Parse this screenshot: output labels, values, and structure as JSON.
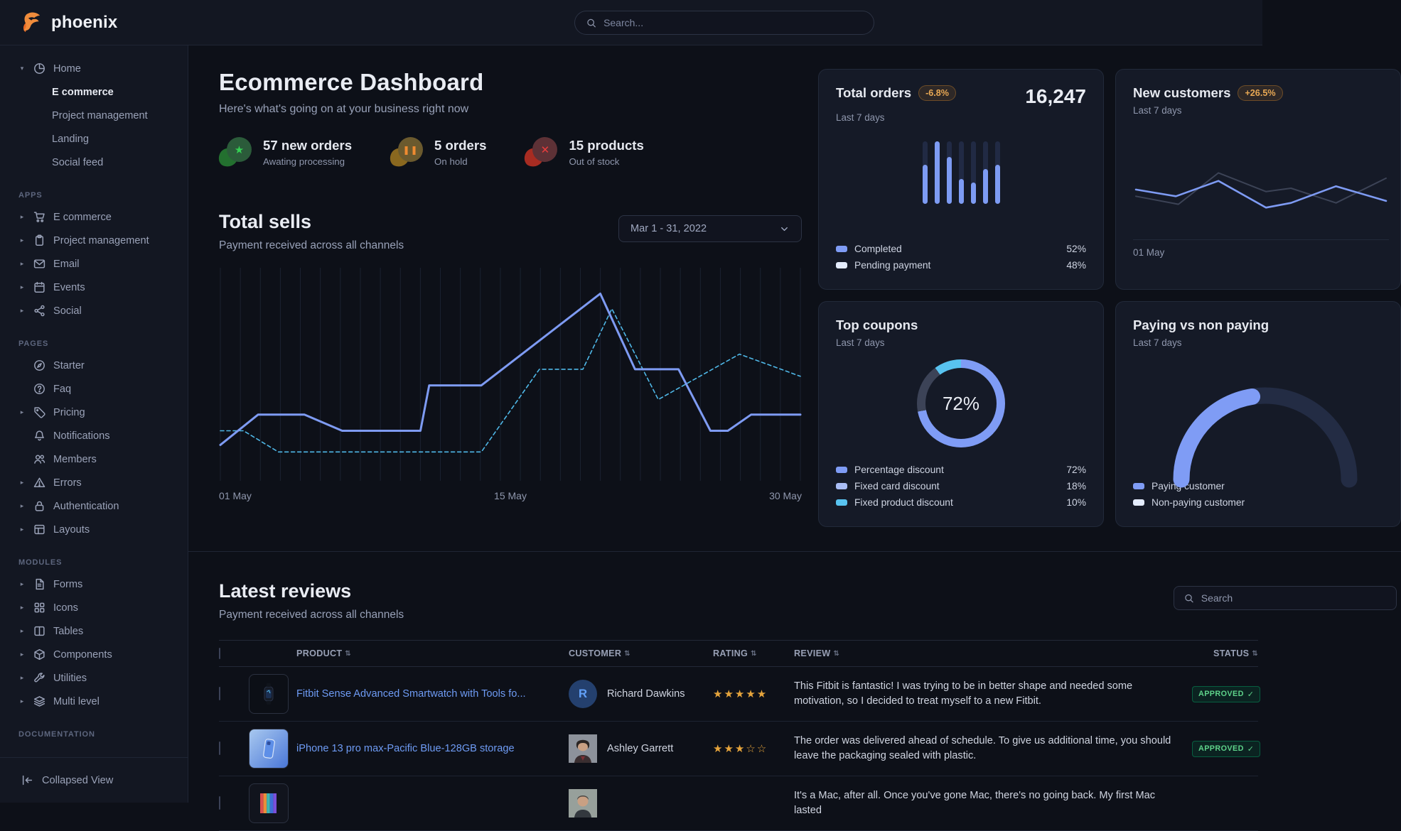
{
  "navbar": {
    "brand": "phoenix",
    "search_placeholder": "Search...",
    "search_icon": "search",
    "logo_icon": "phoenix-bird"
  },
  "sidebar": {
    "sections": [
      {
        "items": [
          {
            "label": "Home",
            "icon": "pie-chart",
            "expanded": true,
            "children": [
              {
                "label": "E commerce",
                "active": true
              },
              {
                "label": "Project management",
                "active": false
              },
              {
                "label": "Landing",
                "active": false
              },
              {
                "label": "Social feed",
                "active": false
              }
            ]
          }
        ]
      },
      {
        "label": "APPS",
        "items": [
          {
            "label": "E commerce",
            "icon": "cart",
            "caret": true
          },
          {
            "label": "Project management",
            "icon": "clipboard",
            "caret": true
          },
          {
            "label": "Email",
            "icon": "envelope",
            "caret": true
          },
          {
            "label": "Events",
            "icon": "calendar",
            "caret": true
          },
          {
            "label": "Social",
            "icon": "share",
            "caret": true
          }
        ]
      },
      {
        "label": "PAGES",
        "items": [
          {
            "label": "Starter",
            "icon": "compass",
            "caret": false
          },
          {
            "label": "Faq",
            "icon": "question-circle",
            "caret": false
          },
          {
            "label": "Pricing",
            "icon": "tag",
            "caret": true
          },
          {
            "label": "Notifications",
            "icon": "bell",
            "caret": false
          },
          {
            "label": "Members",
            "icon": "users",
            "caret": false
          },
          {
            "label": "Errors",
            "icon": "warning",
            "caret": true
          },
          {
            "label": "Authentication",
            "icon": "lock",
            "caret": true
          },
          {
            "label": "Layouts",
            "icon": "layout",
            "caret": true
          }
        ]
      },
      {
        "label": "MODULES",
        "items": [
          {
            "label": "Forms",
            "icon": "file-text",
            "caret": true
          },
          {
            "label": "Icons",
            "icon": "grid",
            "caret": true
          },
          {
            "label": "Tables",
            "icon": "columns",
            "caret": true
          },
          {
            "label": "Components",
            "icon": "package",
            "caret": true
          },
          {
            "label": "Utilities",
            "icon": "wrench",
            "caret": true
          },
          {
            "label": "Multi level",
            "icon": "layers",
            "caret": true
          }
        ]
      },
      {
        "label": "DOCUMENTATION",
        "items": []
      }
    ],
    "footer": {
      "label": "Collapsed View",
      "icon": "collapse"
    }
  },
  "page": {
    "title": "Ecommerce Dashboard",
    "subtitle": "Here's what's going on at your business right now"
  },
  "stats": [
    {
      "title": "57 new orders",
      "subtitle": "Awating processing",
      "icon": "star",
      "accent": "#35d154"
    },
    {
      "title": "5 orders",
      "subtitle": "On hold",
      "icon": "pause",
      "accent": "#ef8b31"
    },
    {
      "title": "15 products",
      "subtitle": "Out of stock",
      "icon": "x",
      "accent": "#ea3d3d"
    }
  ],
  "total_sells": {
    "title": "Total sells",
    "subtitle": "Payment received across all channels",
    "date_range": "Mar 1 - 31, 2022",
    "chevron_icon": "chevron-down",
    "chart_data": {
      "type": "line",
      "x_ticks": [
        "01 May",
        "15 May",
        "30 May"
      ],
      "gridlines": 30,
      "series": [
        {
          "name": "current",
          "color": "#7e9bf3",
          "style": "solid",
          "points": [
            [
              0,
              0.85
            ],
            [
              0.065,
              0.7
            ],
            [
              0.145,
              0.7
            ],
            [
              0.21,
              0.78
            ],
            [
              0.345,
              0.78
            ],
            [
              0.36,
              0.555
            ],
            [
              0.45,
              0.555
            ],
            [
              0.655,
              0.1
            ],
            [
              0.715,
              0.475
            ],
            [
              0.79,
              0.475
            ],
            [
              0.845,
              0.78
            ],
            [
              0.875,
              0.78
            ],
            [
              0.915,
              0.7
            ],
            [
              1,
              0.7
            ]
          ]
        },
        {
          "name": "previous",
          "color": "#4fb8e8",
          "style": "dashed",
          "points": [
            [
              0,
              0.78
            ],
            [
              0.04,
              0.78
            ],
            [
              0.1,
              0.885
            ],
            [
              0.45,
              0.885
            ],
            [
              0.55,
              0.475
            ],
            [
              0.625,
              0.475
            ],
            [
              0.675,
              0.175
            ],
            [
              0.755,
              0.625
            ],
            [
              0.895,
              0.4
            ],
            [
              1,
              0.51
            ]
          ]
        }
      ]
    }
  },
  "cards": {
    "total_orders": {
      "title": "Total orders",
      "badge": "-6.8%",
      "period": "Last 7 days",
      "value": "16,247",
      "chart_data": {
        "type": "bar",
        "values_pct": [
          62,
          100,
          75,
          40,
          34,
          56,
          62
        ],
        "bar_color": "#7d9bf3",
        "track_color": "#212a44"
      },
      "legend": [
        {
          "label": "Completed",
          "value": "52%",
          "color": "#7f9cf5"
        },
        {
          "label": "Pending payment",
          "value": "48%",
          "color": "#e4ecfd"
        }
      ]
    },
    "new_customers": {
      "title": "New customers",
      "badge": "+26.5%",
      "period": "Last 7 days",
      "x_tick": "01 May",
      "chart_data": {
        "type": "line",
        "series": [
          {
            "name": "previous",
            "color": "#3c4356",
            "points": [
              [
                0,
                0.45
              ],
              [
                0.17,
                0.57
              ],
              [
                0.33,
                0.1
              ],
              [
                0.52,
                0.38
              ],
              [
                0.62,
                0.33
              ],
              [
                0.8,
                0.55
              ],
              [
                1,
                0.18
              ]
            ]
          },
          {
            "name": "current",
            "color": "#7e9bf3",
            "points": [
              [
                0,
                0.35
              ],
              [
                0.16,
                0.45
              ],
              [
                0.33,
                0.22
              ],
              [
                0.52,
                0.62
              ],
              [
                0.62,
                0.55
              ],
              [
                0.8,
                0.3
              ],
              [
                1,
                0.52
              ]
            ]
          }
        ]
      }
    },
    "top_coupons": {
      "title": "Top coupons",
      "period": "Last 7 days",
      "center_value": "72%",
      "chart_data": {
        "type": "donut",
        "slices": [
          {
            "label": "Percentage discount",
            "value": 72,
            "color": "#7f9cf5"
          },
          {
            "label": "Fixed card discount",
            "value": 18,
            "color": "#3c4357"
          },
          {
            "label": "Fixed product discount",
            "value": 10,
            "color": "#58c3f0"
          }
        ]
      },
      "legend": [
        {
          "label": "Percentage discount",
          "value": "72%",
          "color": "#7f9cf5"
        },
        {
          "label": "Fixed card discount",
          "value": "18%",
          "color": "#a9bdf5"
        },
        {
          "label": "Fixed product discount",
          "value": "10%",
          "color": "#58c3f0"
        }
      ]
    },
    "paying": {
      "title": "Paying vs non paying",
      "period": "Last 7 days",
      "chart_data": {
        "type": "gauge",
        "paying_fraction": 0.45,
        "colors": {
          "paying": "#7f9cf5",
          "non_paying": "#232c44"
        }
      },
      "legend": [
        {
          "label": "Paying customer",
          "color": "#7f9cf5"
        },
        {
          "label": "Non-paying customer",
          "color": "#e4ecfd"
        }
      ]
    }
  },
  "reviews": {
    "title": "Latest reviews",
    "subtitle": "Payment received across all channels",
    "search_placeholder": "Search",
    "search_icon": "search",
    "columns": [
      "PRODUCT",
      "CUSTOMER",
      "RATING",
      "REVIEW",
      "STATUS"
    ],
    "rows": [
      {
        "product": "Fitbit Sense Advanced Smartwatch with Tools fo...",
        "customer": "Richard Dawkins",
        "avatar_initial": "R",
        "rating": 5,
        "review": "This Fitbit is fantastic! I was trying to be in better shape and needed some motivation, so I decided to treat myself to a new Fitbit.",
        "status": "APPROVED",
        "thumb": "smartwatch"
      },
      {
        "product": "iPhone 13 pro max-Pacific Blue-128GB storage",
        "customer": "Ashley Garrett",
        "rating": 3,
        "review": "The order was delivered ahead of schedule. To give us additional time, you should leave the packaging sealed with plastic.",
        "status": "APPROVED",
        "thumb": "iphone"
      },
      {
        "product": "",
        "customer": "",
        "rating": null,
        "review": "It's a Mac, after all. Once you've gone Mac, there's no going back. My first Mac lasted",
        "status": "",
        "thumb": "macbook"
      }
    ]
  }
}
